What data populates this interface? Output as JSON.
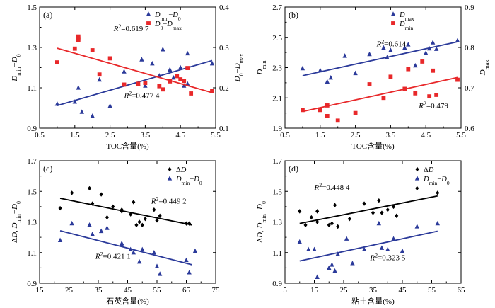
{
  "chart_data": [
    {
      "id": "a",
      "type": "scatter",
      "panel_label": "(a)",
      "xlabel": "TOC含量(%)",
      "ylabel_left": "Dmin−D0",
      "ylabel_right": "D0−Dmax",
      "xlim": [
        0.5,
        5.5
      ],
      "ylim_left": [
        0.9,
        1.5
      ],
      "ylim_right": [
        0.1,
        0.4
      ],
      "xticks": [
        "0.5",
        "1.5",
        "2.5",
        "3.5",
        "4.5",
        "5.5"
      ],
      "yticks_left": [
        "0.9",
        "1.1",
        "1.3",
        "1.5"
      ],
      "yticks_right": [
        "0.1",
        "0.2",
        "0.3",
        "0.4"
      ],
      "legend": [
        {
          "label": "Dmin−D0",
          "color": "#2b3a9a",
          "marker": "triangle"
        },
        {
          "label": "D0−Dmax",
          "color": "#e8282a",
          "marker": "square"
        }
      ],
      "series": [
        {
          "name": "Dmin−D0",
          "axis": "left",
          "color": "#2b3a9a",
          "marker": "triangle",
          "x": [
            1.0,
            1.5,
            1.7,
            1.6,
            2.0,
            2.2,
            2.5,
            2.9,
            3.3,
            3.5,
            3.4,
            3.7,
            3.9,
            4.0,
            4.2,
            4.3,
            4.5,
            4.6,
            4.7,
            4.7,
            5.4
          ],
          "y": [
            1.02,
            1.03,
            0.98,
            1.1,
            0.96,
            1.14,
            1.01,
            1.18,
            1.12,
            1.11,
            1.24,
            1.22,
            1.16,
            1.29,
            1.19,
            1.15,
            1.2,
            1.11,
            1.27,
            1.12,
            1.22
          ],
          "fit": {
            "x": [
              1.0,
              5.4
            ],
            "y": [
              1.012,
              1.235
            ],
            "label": "R2=0.477 4"
          }
        },
        {
          "name": "D0−Dmax",
          "axis": "right",
          "color": "#e8282a",
          "marker": "square",
          "x": [
            1.0,
            1.5,
            1.6,
            1.6,
            1.6,
            2.0,
            2.2,
            2.5,
            2.9,
            3.3,
            3.5,
            3.9,
            4.0,
            4.2,
            4.4,
            4.5,
            4.6,
            4.7,
            4.8,
            5.4
          ],
          "y": [
            0.263,
            0.297,
            0.327,
            0.318,
            0.322,
            0.293,
            0.233,
            0.273,
            0.208,
            0.21,
            0.212,
            0.204,
            0.196,
            0.216,
            0.229,
            0.221,
            0.217,
            0.249,
            0.186,
            0.192
          ],
          "fit": {
            "x": [
              1.0,
              5.4
            ],
            "y": [
              0.298,
              0.188
            ],
            "label": "R2=0.619 7"
          }
        }
      ],
      "annotations": [
        {
          "text": "R2=0.619 7",
          "color": "#e8282a",
          "x": 2.6,
          "y_left": 1.38
        },
        {
          "text": "R2=0.477 4",
          "color": "#2b3a9a",
          "x": 2.9,
          "y_left": 1.05
        }
      ]
    },
    {
      "id": "b",
      "type": "scatter",
      "panel_label": "(b)",
      "xlabel": "TOC含量(%)",
      "ylabel_left": "Dmin",
      "ylabel_right": "Dmax",
      "xlim": [
        0.5,
        5.5
      ],
      "ylim_left": [
        1.9,
        2.7
      ],
      "ylim_right": [
        0.6,
        0.9
      ],
      "xticks": [
        "0.5",
        "1.5",
        "2.5",
        "3.5",
        "4.5",
        "5.5"
      ],
      "yticks_left": [
        "1.9",
        "2.1",
        "2.3",
        "2.5",
        "2.7"
      ],
      "yticks_right": [
        "0.6",
        "0.7",
        "0.8",
        "0.9"
      ],
      "legend": [
        {
          "label": "Dmax",
          "color": "#2b3a9a",
          "marker": "triangle"
        },
        {
          "label": "Dmin",
          "color": "#e8282a",
          "marker": "square"
        }
      ],
      "series": [
        {
          "name": "Dmax",
          "axis": "right",
          "color": "#2b3a9a",
          "marker": "triangle",
          "x": [
            1.0,
            1.5,
            1.7,
            1.8,
            2.2,
            2.5,
            2.9,
            3.3,
            3.5,
            3.4,
            3.9,
            4.0,
            4.2,
            4.5,
            4.6,
            4.7,
            4.8,
            5.4
          ],
          "y": [
            0.748,
            0.743,
            0.715,
            0.725,
            0.779,
            0.736,
            0.783,
            0.799,
            0.793,
            0.775,
            0.799,
            0.807,
            0.755,
            0.786,
            0.797,
            0.812,
            0.796,
            0.817
          ],
          "fit": {
            "x": [
              1.0,
              5.4
            ],
            "y": [
              0.73,
              0.814
            ],
            "label": "R2=0.614"
          }
        },
        {
          "name": "Dmin",
          "axis": "left",
          "color": "#e8282a",
          "marker": "square",
          "x": [
            1.0,
            1.5,
            1.7,
            1.7,
            2.0,
            2.5,
            2.9,
            3.3,
            3.5,
            3.9,
            4.0,
            4.2,
            4.4,
            4.6,
            4.7,
            4.8,
            5.4
          ],
          "y": [
            2.02,
            2.02,
            1.98,
            2.05,
            1.95,
            2.0,
            2.19,
            2.1,
            2.24,
            2.16,
            2.29,
            2.13,
            2.34,
            2.11,
            2.28,
            2.12,
            2.22
          ],
          "fit": {
            "x": [
              1.0,
              5.4
            ],
            "y": [
              2.01,
              2.235
            ],
            "label": "R2=0.479"
          }
        }
      ],
      "annotations": [
        {
          "text": "R2=0.614",
          "color": "#2b3a9a",
          "x": 3.1,
          "y_left": 2.44
        },
        {
          "text": "R2=0.479",
          "color": "#e8282a",
          "x": 4.3,
          "y_left": 2.03
        }
      ]
    },
    {
      "id": "c",
      "type": "scatter",
      "panel_label": "(c)",
      "xlabel": "石英含量(%)",
      "ylabel_left": "ΔD, Dmin−D0",
      "xlim": [
        15,
        75
      ],
      "ylim_left": [
        0.9,
        1.7
      ],
      "xticks": [
        "15",
        "25",
        "35",
        "45",
        "55",
        "65",
        "75"
      ],
      "yticks_left": [
        "0.9",
        "1.1",
        "1.3",
        "1.5",
        "1.7"
      ],
      "legend": [
        {
          "label": "ΔD",
          "color": "#000000",
          "marker": "diamond"
        },
        {
          "label": "Dmin−D0",
          "color": "#2b3a9a",
          "marker": "triangle"
        }
      ],
      "series": [
        {
          "name": "ΔD",
          "axis": "left",
          "color": "#000000",
          "marker": "diamond",
          "x": [
            22,
            26,
            32,
            33,
            36,
            38,
            40,
            43,
            43,
            46,
            47,
            48,
            49,
            50,
            51,
            54,
            55,
            56,
            65,
            66
          ],
          "y": [
            1.39,
            1.49,
            1.52,
            1.42,
            1.48,
            1.33,
            1.4,
            1.38,
            1.37,
            1.35,
            1.43,
            1.28,
            1.3,
            1.28,
            1.32,
            1.38,
            1.31,
            1.34,
            1.29,
            1.29
          ],
          "fit": {
            "x": [
              22,
              67
            ],
            "y": [
              1.455,
              1.28
            ],
            "label": "R2=0.449 2"
          }
        },
        {
          "name": "Dmin−D0",
          "axis": "left",
          "color": "#2b3a9a",
          "marker": "triangle",
          "x": [
            22,
            26,
            32,
            33,
            36,
            38,
            43,
            43,
            46,
            47,
            49,
            50,
            54,
            55,
            56,
            65,
            66,
            68
          ],
          "y": [
            1.18,
            1.29,
            1.28,
            1.22,
            1.24,
            1.26,
            1.15,
            1.16,
            1.12,
            1.1,
            1.04,
            1.12,
            1.1,
            1.01,
            0.96,
            1.05,
            0.97,
            1.11
          ],
          "fit": {
            "x": [
              22,
              67
            ],
            "y": [
              1.243,
              1.02
            ],
            "label": "R2=0.421 1"
          }
        }
      ],
      "annotations": [
        {
          "text": "R2=0.449 2",
          "color": "#000000",
          "x": 53,
          "y_left": 1.42
        },
        {
          "text": "R2=0.421 1",
          "color": "#2b3a9a",
          "x": 34,
          "y_left": 1.06
        }
      ]
    },
    {
      "id": "d",
      "type": "scatter",
      "panel_label": "(d)",
      "xlabel": "粘土含量(%)",
      "ylabel_left": "ΔD, Dmin−D0",
      "xlim": [
        5,
        65
      ],
      "ylim_left": [
        0.9,
        1.7
      ],
      "xticks": [
        "5",
        "15",
        "25",
        "35",
        "45",
        "55",
        "65"
      ],
      "yticks_left": [
        "0.9",
        "1.1",
        "1.3",
        "1.5",
        "1.7"
      ],
      "legend": [
        {
          "label": "ΔD",
          "color": "#000000",
          "marker": "diamond"
        },
        {
          "label": "Dmin−D0",
          "color": "#2b3a9a",
          "marker": "triangle"
        }
      ],
      "series": [
        {
          "name": "ΔD",
          "axis": "left",
          "color": "#000000",
          "marker": "diamond",
          "x": [
            10,
            12,
            14,
            16,
            16,
            20,
            21,
            22,
            23,
            27,
            32,
            35,
            37,
            38,
            40,
            42,
            43,
            50,
            57
          ],
          "y": [
            1.37,
            1.28,
            1.33,
            1.37,
            1.3,
            1.28,
            1.29,
            1.41,
            1.27,
            1.32,
            1.42,
            1.36,
            1.44,
            1.36,
            1.38,
            1.4,
            1.34,
            1.52,
            1.49
          ],
          "fit": {
            "x": [
              10,
              57
            ],
            "y": [
              1.29,
              1.47
            ],
            "label": "R2=0.448 4"
          }
        },
        {
          "name": "Dmin−D0",
          "axis": "left",
          "color": "#2b3a9a",
          "marker": "triangle",
          "x": [
            10,
            13,
            15,
            16,
            20,
            21,
            22,
            23,
            26,
            28,
            32,
            37,
            38,
            40,
            42,
            45,
            50,
            57
          ],
          "y": [
            1.17,
            1.12,
            1.12,
            0.94,
            1.0,
            1.02,
            0.98,
            1.09,
            1.19,
            1.03,
            1.12,
            1.29,
            1.13,
            1.12,
            1.19,
            1.11,
            1.27,
            1.29
          ],
          "fit": {
            "x": [
              10,
              57
            ],
            "y": [
              1.045,
              1.24
            ],
            "label": "R2=0.323 5"
          }
        }
      ],
      "annotations": [
        {
          "text": "R2=0.448 4",
          "color": "#000000",
          "x": 15,
          "y_left": 1.51
        },
        {
          "text": "R2=0.323 5",
          "color": "#2b3a9a",
          "x": 34,
          "y_left": 1.05
        }
      ]
    }
  ]
}
